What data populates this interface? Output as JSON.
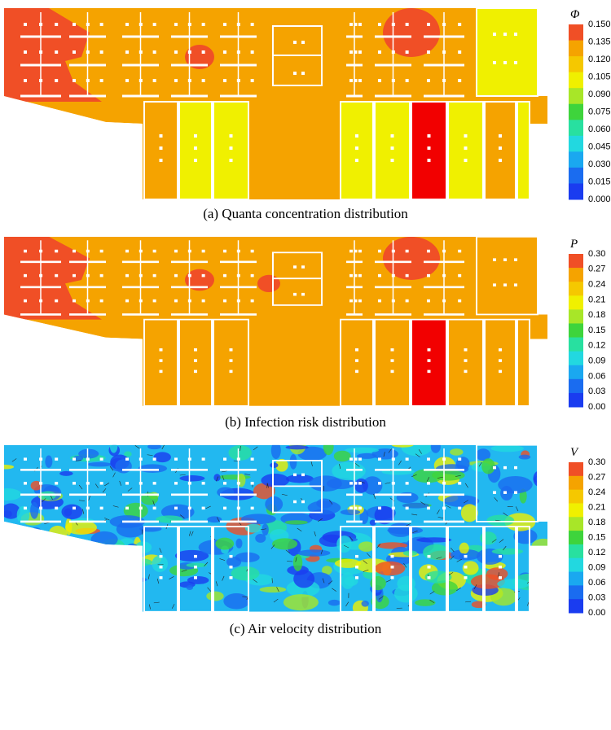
{
  "panels": [
    {
      "symbol": "Φ",
      "caption": "(a) Quanta concentration distribution",
      "ticks": [
        "0.150",
        "0.135",
        "0.120",
        "0.105",
        "0.090",
        "0.075",
        "0.060",
        "0.045",
        "0.030",
        "0.015",
        "0.000"
      ]
    },
    {
      "symbol": "P",
      "caption": "(b) Infection risk distribution",
      "ticks": [
        "0.30",
        "0.27",
        "0.24",
        "0.21",
        "0.18",
        "0.15",
        "0.12",
        "0.09",
        "0.06",
        "0.03",
        "0.00"
      ]
    },
    {
      "symbol": "V",
      "caption": "(c) Air velocity distribution",
      "ticks": [
        "0.30",
        "0.27",
        "0.24",
        "0.21",
        "0.18",
        "0.15",
        "0.12",
        "0.09",
        "0.06",
        "0.03",
        "0.00"
      ]
    }
  ]
}
